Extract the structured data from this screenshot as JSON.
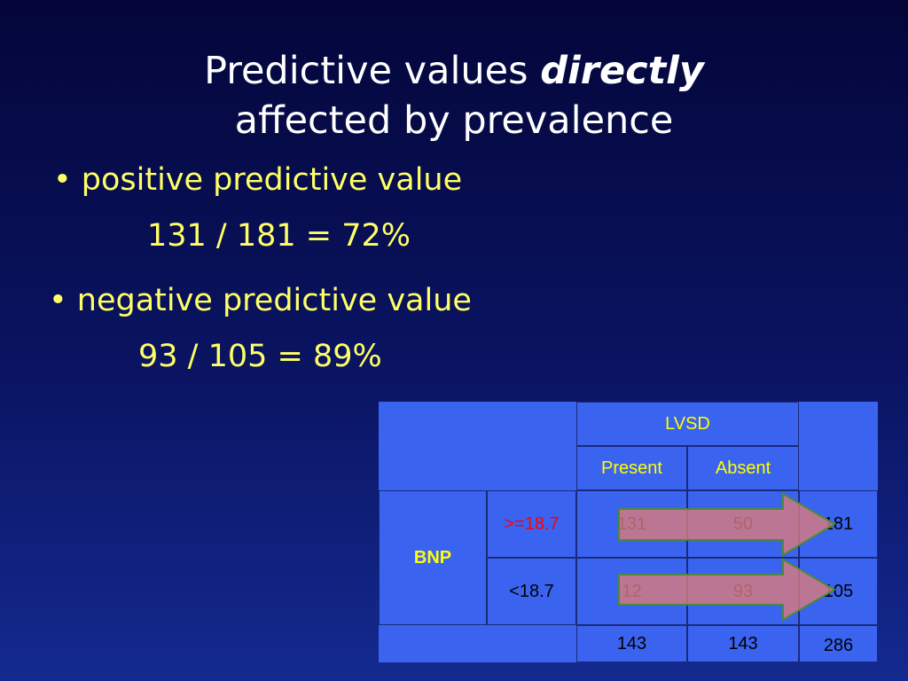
{
  "title": {
    "line1_prefix": "Predictive values ",
    "line1_emphasis": "directly",
    "line2": "affected by prevalence"
  },
  "bullets": [
    {
      "label": "• positive predictive value",
      "formula": "131 / 181 = 72%"
    },
    {
      "label": "• negative predictive value",
      "formula": "93 / 105 = 89%"
    }
  ],
  "table": {
    "column_group": "LVSD",
    "columns": [
      "Present",
      "Absent"
    ],
    "row_group": "BNP",
    "rows": [
      {
        "label": ">=18.7",
        "present": "131",
        "absent": "50",
        "total": "181"
      },
      {
        "label": "<18.7",
        "present": "12",
        "absent": "93",
        "total": "105"
      }
    ],
    "column_totals": {
      "present": "143",
      "absent": "143",
      "grand": "286"
    }
  },
  "colors": {
    "title_text": "#ffffff",
    "bullet_text": "#ffff66",
    "table_blue": "#3a63f0",
    "highlight_yellow": "#ffff00",
    "highlight_red": "#ff0000",
    "arrow_fill": "#d87a7e",
    "arrow_stroke": "#4a8a3a"
  }
}
